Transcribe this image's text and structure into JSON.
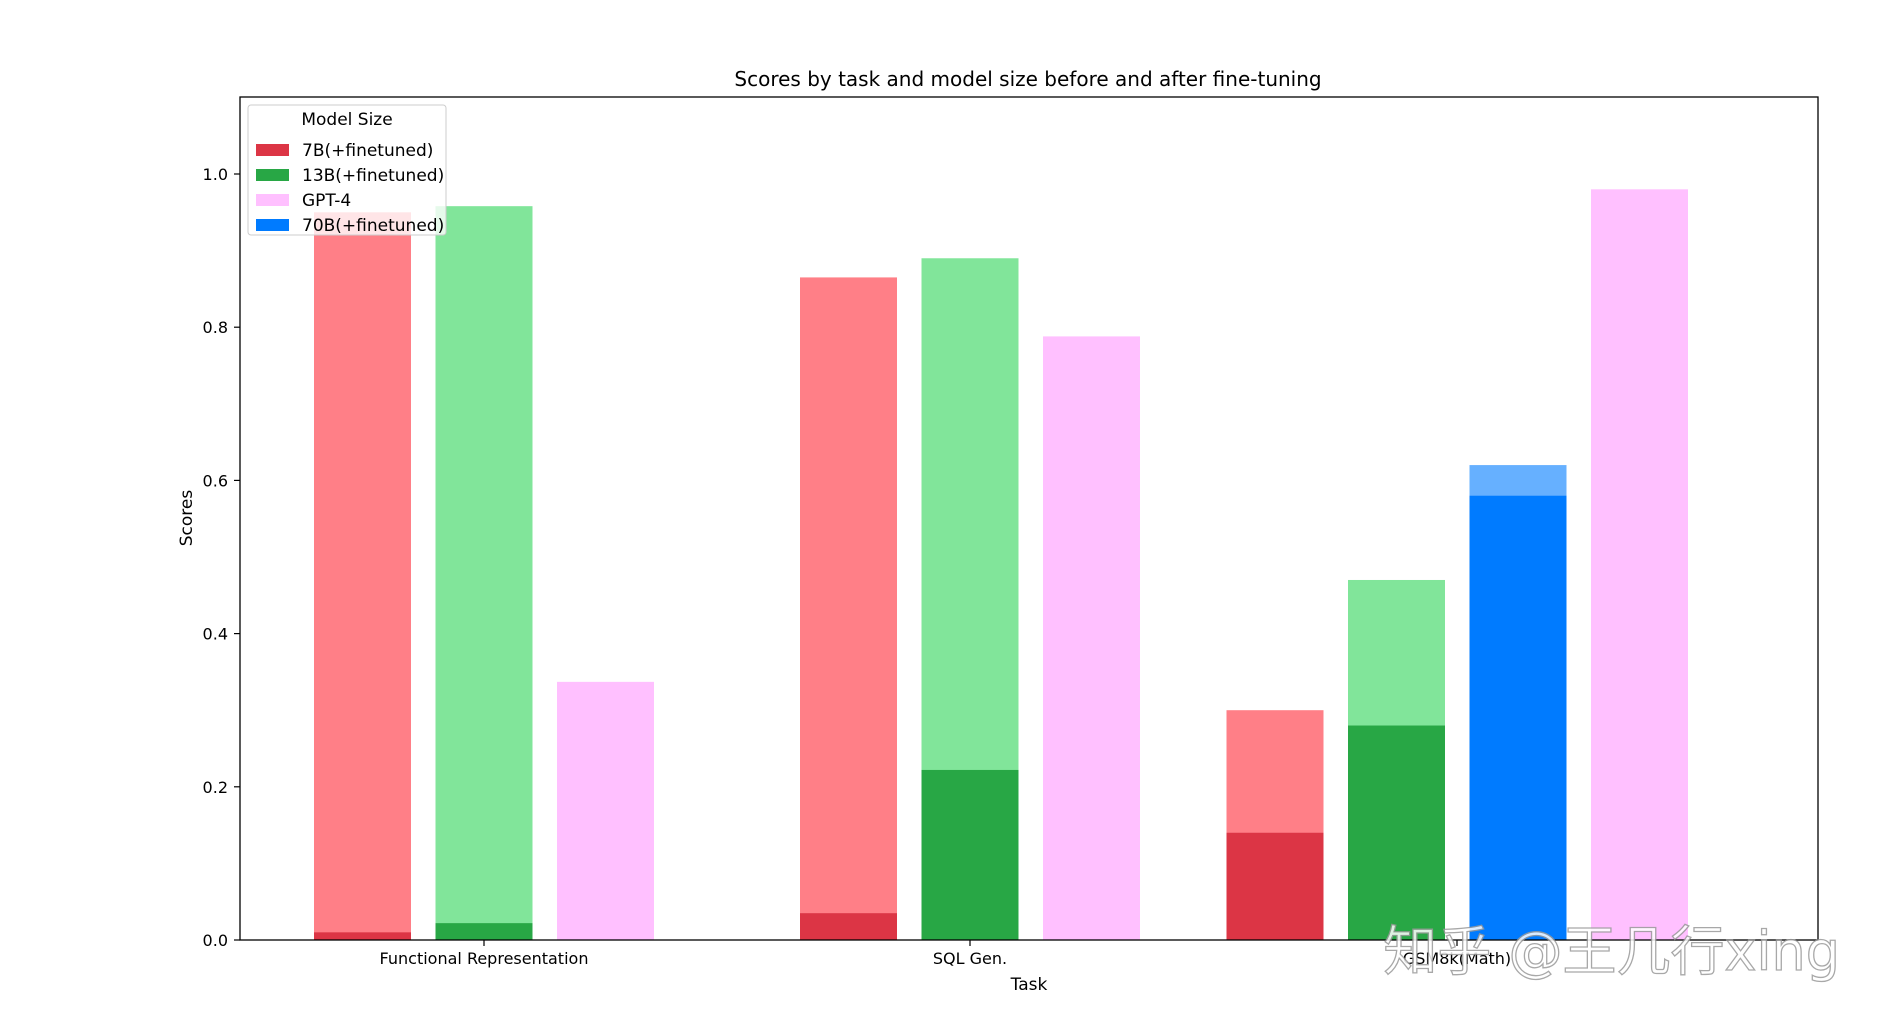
{
  "chart_data": {
    "type": "bar",
    "title": "Scores by task and model size before and after fine-tuning",
    "xlabel": "Task",
    "ylabel": "Scores",
    "ylim": [
      0,
      1.1
    ],
    "yticks": [
      "0.0",
      "0.2",
      "0.4",
      "0.6",
      "0.8",
      "1.0"
    ],
    "categories": [
      "Functional Representation",
      "SQL Gen.",
      "GSM8k(Math)"
    ],
    "legend": {
      "title": "Model Size",
      "placement": "top-left",
      "entries": [
        {
          "label": "7B(+finetuned)",
          "color": "#dc3545"
        },
        {
          "label": "13B(+finetuned)",
          "color": "#28a745"
        },
        {
          "label": "GPT-4",
          "color": "#ffc0ff"
        },
        {
          "label": "70B(+finetuned)",
          "color": "#007bff"
        }
      ]
    },
    "series": [
      {
        "model": "7B",
        "base": [
          0.01,
          0.035,
          0.14
        ],
        "finetuned": [
          0.95,
          0.865,
          0.3
        ],
        "base_color": "#dc3545",
        "finetuned_color": "#ff7f87"
      },
      {
        "model": "13B",
        "base": [
          0.022,
          0.222,
          0.28
        ],
        "finetuned": [
          0.958,
          0.89,
          0.47
        ],
        "base_color": "#28a745",
        "finetuned_color": "#81e59a"
      },
      {
        "model": "70B",
        "base": [
          null,
          null,
          0.58
        ],
        "finetuned": [
          null,
          null,
          0.62
        ],
        "base_color": "#007bff",
        "finetuned_color": "#66b0ff"
      },
      {
        "model": "GPT-4",
        "base": [
          0.337,
          0.788,
          0.98
        ],
        "finetuned": [
          null,
          null,
          null
        ],
        "base_color": "#ffc0ff",
        "finetuned_color": "#ffc0ff"
      }
    ],
    "grid": false
  },
  "watermark": "知乎 @王几行xing"
}
